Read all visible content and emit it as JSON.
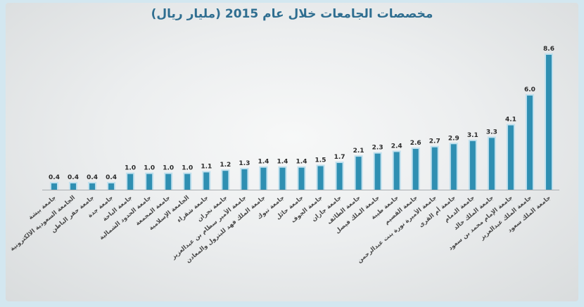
{
  "chart_data": {
    "type": "bar",
    "title": "مخصصات الجامعات خلال عام 2015 (مليار ريال)",
    "xlabel": "",
    "ylabel": "",
    "ylim": [
      0,
      9
    ],
    "grid": false,
    "categories": [
      "جامعة بيشة",
      "الجامعة السعودية الالكترونية",
      "جامعة حفر الباطن",
      "جامعة جدة",
      "جامعة الباحة",
      "جامعة الحدود الشمالية",
      "جامعة المجمعة",
      "الجامعة الإسلامية",
      "جامعة شقراء",
      "جامعة نجران",
      "جامعة الأمير سطام بن عبدالعزيز",
      "جامعة الملك فهد للبترول والمعادن",
      "جامعة تبوك",
      "جامعة حائل",
      "جامعة الجوف",
      "جامعة جازان",
      "جامعة الطائف",
      "جامعة الملك فيصل",
      "جامعة طيبة",
      "جامعة القصيم",
      "جامعة الأميرة نورة بنت عبدالرحمن",
      "جامعة أم القرى",
      "جامعة الدمام",
      "جامعة الملك خالد",
      "جامعة الإمام محمد بن سعود",
      "جامعة الملك عبدالعزيز",
      "جامعة الملك سعود"
    ],
    "values": [
      0.4,
      0.4,
      0.4,
      0.4,
      1.0,
      1.0,
      1.0,
      1.0,
      1.1,
      1.2,
      1.3,
      1.4,
      1.4,
      1.4,
      1.5,
      1.7,
      2.1,
      2.3,
      2.4,
      2.6,
      2.7,
      2.9,
      3.1,
      3.3,
      4.1,
      6.0,
      8.6
    ],
    "value_labels": [
      "0.4",
      "0.4",
      "0.4",
      "0.4",
      "1.0",
      "1.0",
      "1.0",
      "1.0",
      "1.1",
      "1.2",
      "1.3",
      "1.4",
      "1.4",
      "1.4",
      "1.5",
      "1.7",
      "2.1",
      "2.3",
      "2.4",
      "2.6",
      "2.7",
      "2.9",
      "3.1",
      "3.3",
      "4.1",
      "6.0",
      "8.6"
    ],
    "colors": {
      "bar": "#2f8fb2",
      "bar_glow": "#bfe0ee",
      "title": "#2f6e90",
      "baseline": "#a9adb0",
      "background": "#d3e7f0"
    }
  }
}
